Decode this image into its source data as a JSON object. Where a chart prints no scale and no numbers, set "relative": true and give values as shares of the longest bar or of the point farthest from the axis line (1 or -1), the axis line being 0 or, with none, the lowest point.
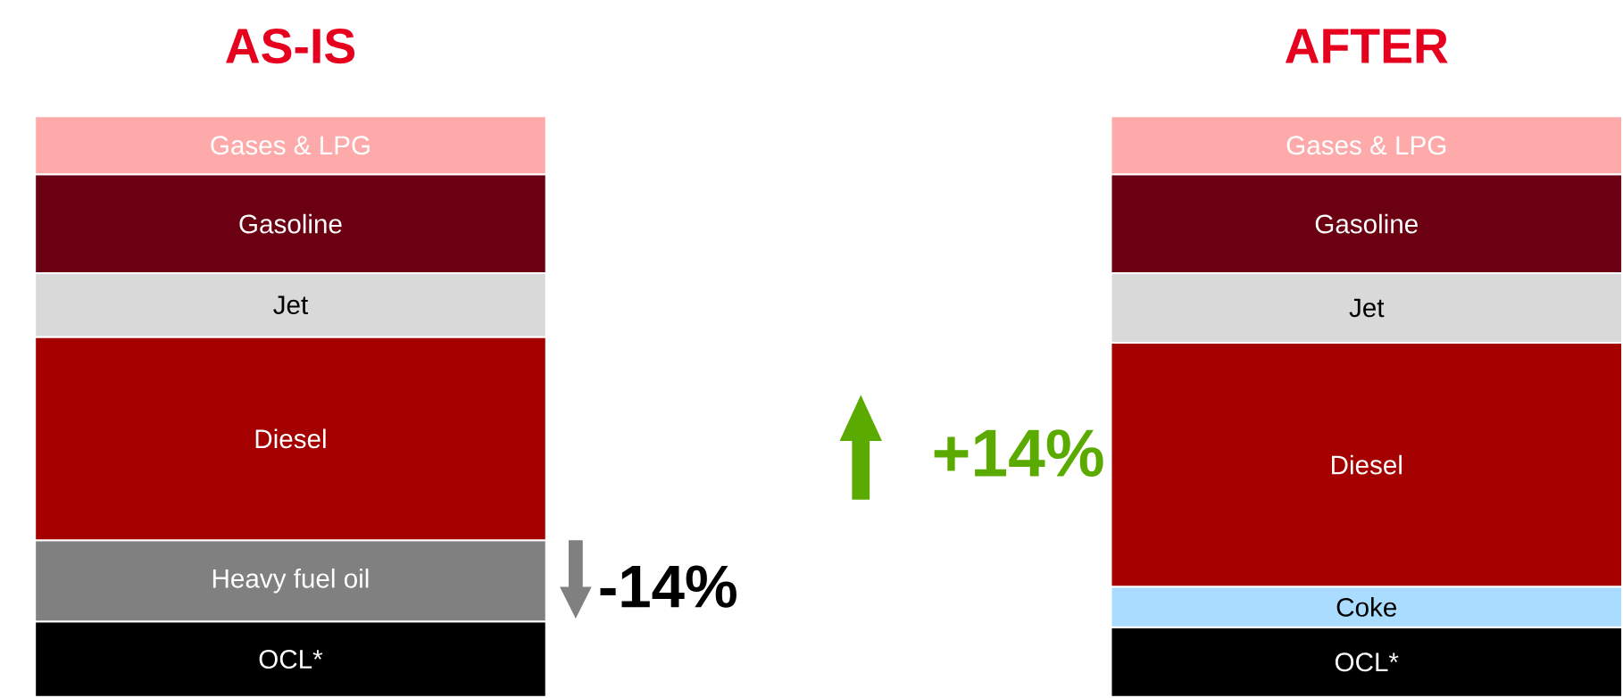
{
  "chart_data": {
    "type": "bar",
    "stacked": true,
    "relative": true,
    "categories": [
      "AS-IS",
      "AFTER"
    ],
    "series": [
      {
        "name": "OCL*",
        "color": "#000000",
        "values": [
          0.13,
          0.12
        ]
      },
      {
        "name": "Heavy fuel oil",
        "color": "#808080",
        "values": [
          0.14,
          null
        ]
      },
      {
        "name": "Coke",
        "color": "#aadcff",
        "values": [
          null,
          0.07
        ]
      },
      {
        "name": "Diesel",
        "color": "#a50000",
        "values": [
          0.35,
          0.42
        ]
      },
      {
        "name": "Jet",
        "color": "#d9d9d9",
        "values": [
          0.11,
          0.12
        ]
      },
      {
        "name": "Gasoline",
        "color": "#6b0012",
        "values": [
          0.17,
          0.17
        ]
      },
      {
        "name": "Gases & LPG",
        "color": "#ffaaaa",
        "values": [
          0.1,
          0.1
        ]
      }
    ],
    "annotations": [
      "+14%",
      "-14%"
    ]
  }
}
